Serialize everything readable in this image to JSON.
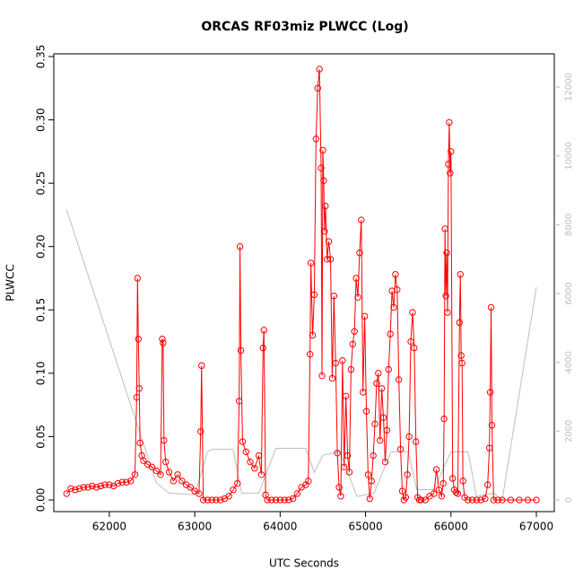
{
  "chart_data": {
    "type": "line",
    "title": "ORCAS RF03miz PLWCC (Log)",
    "xlabel": "UTC Seconds",
    "ylabel": "PLWCC",
    "xlim": [
      61350,
      67210
    ],
    "xticks": [
      62000,
      63000,
      64000,
      65000,
      66000,
      67000
    ],
    "ylim": [
      -0.0092,
      0.3521
    ],
    "yticks": [
      {
        "value": 0,
        "label": "0.00"
      },
      {
        "value": 0.05,
        "label": "0.05"
      },
      {
        "value": 0.1,
        "label": "0.10"
      },
      {
        "value": 0.15,
        "label": "0.15"
      },
      {
        "value": 0.2,
        "label": "0.20"
      },
      {
        "value": 0.25,
        "label": "0.25"
      },
      {
        "value": 0.3,
        "label": "0.30"
      },
      {
        "value": 0.35,
        "label": "0.35"
      }
    ],
    "y2lim": [
      -339,
      12965
    ],
    "y2ticks": [
      0,
      2000,
      4000,
      6000,
      8000,
      10000,
      12000
    ],
    "series": [
      {
        "color": "#bebebe",
        "axis": "y2",
        "markers": false,
        "x": [
          61500,
          62550,
          62700,
          63000,
          63150,
          63200,
          63450,
          63550,
          63750,
          63950,
          64300,
          64400,
          64500,
          64700,
          64900,
          65100,
          65300,
          65500,
          65600,
          65800,
          66000,
          66200,
          66300,
          66500,
          66600,
          67000
        ],
        "values": [
          8430,
          500,
          200,
          150,
          1400,
          1470,
          1470,
          200,
          200,
          1500,
          1500,
          800,
          1300,
          1400,
          100,
          200,
          1400,
          1400,
          300,
          300,
          1400,
          1400,
          100,
          200,
          0,
          6180
        ]
      },
      {
        "color": "#ff0000",
        "markers": true,
        "x": [
          61500,
          61550,
          61600,
          61650,
          61700,
          61750,
          61800,
          61850,
          61900,
          61950,
          62000,
          62050,
          62100,
          62150,
          62200,
          62250,
          62300,
          62320,
          62330,
          62340,
          62350,
          62360,
          62380,
          62400,
          62450,
          62500,
          62550,
          62600,
          62620,
          62630,
          62640,
          62660,
          62700,
          62750,
          62800,
          62850,
          62900,
          62950,
          63000,
          63050,
          63070,
          63080,
          63100,
          63150,
          63200,
          63250,
          63300,
          63350,
          63400,
          63450,
          63500,
          63520,
          63530,
          63540,
          63560,
          63600,
          63650,
          63700,
          63750,
          63780,
          63800,
          63810,
          63830,
          63850,
          63900,
          63950,
          64000,
          64050,
          64100,
          64150,
          64200,
          64250,
          64300,
          64330,
          64350,
          64360,
          64380,
          64400,
          64420,
          64440,
          64460,
          64480,
          64490,
          64500,
          64510,
          64520,
          64530,
          64550,
          64570,
          64590,
          64610,
          64630,
          64650,
          64670,
          64690,
          64710,
          64730,
          64750,
          64770,
          64790,
          64810,
          64830,
          64850,
          64870,
          64890,
          64910,
          64930,
          64950,
          64970,
          64990,
          65010,
          65030,
          65050,
          65070,
          65090,
          65110,
          65130,
          65150,
          65170,
          65190,
          65210,
          65230,
          65250,
          65270,
          65290,
          65310,
          65330,
          65350,
          65370,
          65390,
          65410,
          65430,
          65450,
          65470,
          65490,
          65510,
          65530,
          65550,
          65570,
          65590,
          65610,
          65630,
          65650,
          65700,
          65750,
          65800,
          65830,
          65860,
          65890,
          65910,
          65920,
          65930,
          65940,
          65950,
          65960,
          65970,
          65980,
          65990,
          66000,
          66020,
          66040,
          66060,
          66080,
          66100,
          66110,
          66120,
          66130,
          66140,
          66160,
          66200,
          66250,
          66300,
          66350,
          66400,
          66430,
          66450,
          66460,
          66470,
          66480,
          66500,
          66550,
          66600,
          66700,
          66800,
          66900,
          67000
        ],
        "values": [
          0.005,
          0.009,
          0.008,
          0.009,
          0.01,
          0.01,
          0.011,
          0.01,
          0.011,
          0.012,
          0.012,
          0.011,
          0.013,
          0.014,
          0.014,
          0.015,
          0.02,
          0.081,
          0.175,
          0.127,
          0.088,
          0.045,
          0.035,
          0.031,
          0.028,
          0.026,
          0.023,
          0.02,
          0.127,
          0.124,
          0.047,
          0.03,
          0.022,
          0.015,
          0.02,
          0.015,
          0.012,
          0.01,
          0.007,
          0.005,
          0.054,
          0.106,
          0,
          0,
          0,
          0,
          0,
          0.001,
          0.003,
          0.008,
          0.013,
          0.078,
          0.2,
          0.118,
          0.046,
          0.038,
          0.03,
          0.025,
          0.035,
          0.02,
          0.12,
          0.134,
          0.004,
          0,
          0,
          0,
          0,
          0,
          0,
          0.001,
          0.005,
          0.01,
          0.012,
          0.015,
          0.115,
          0.187,
          0.13,
          0.162,
          0.285,
          0.325,
          0.34,
          0.262,
          0.098,
          0.276,
          0.252,
          0.212,
          0.232,
          0.19,
          0.204,
          0.19,
          0.096,
          0.161,
          0.108,
          0.037,
          0.01,
          0.003,
          0.11,
          0.026,
          0.082,
          0.035,
          0.022,
          0.103,
          0.123,
          0.133,
          0.175,
          0.16,
          0.195,
          0.221,
          0.085,
          0.145,
          0.07,
          0.02,
          0.001,
          0.015,
          0.035,
          0.06,
          0.092,
          0.1,
          0.047,
          0.088,
          0.065,
          0.03,
          0.055,
          0.103,
          0.131,
          0.165,
          0.152,
          0.178,
          0.166,
          0.095,
          0.04,
          0.007,
          0,
          0.002,
          0.02,
          0.05,
          0.125,
          0.148,
          0.12,
          0.046,
          0.002,
          0,
          0,
          0,
          0.003,
          0.005,
          0.024,
          0.008,
          0.003,
          0.013,
          0.064,
          0.214,
          0.161,
          0.195,
          0.148,
          0.265,
          0.298,
          0.258,
          0.275,
          0.017,
          0.008,
          0.006,
          0.005,
          0.14,
          0.178,
          0.114,
          0.108,
          0.015,
          0.002,
          0,
          0,
          0,
          0,
          0.001,
          0.012,
          0.041,
          0.085,
          0.152,
          0.059,
          0,
          0,
          0,
          0,
          0,
          0,
          0
        ]
      }
    ]
  }
}
